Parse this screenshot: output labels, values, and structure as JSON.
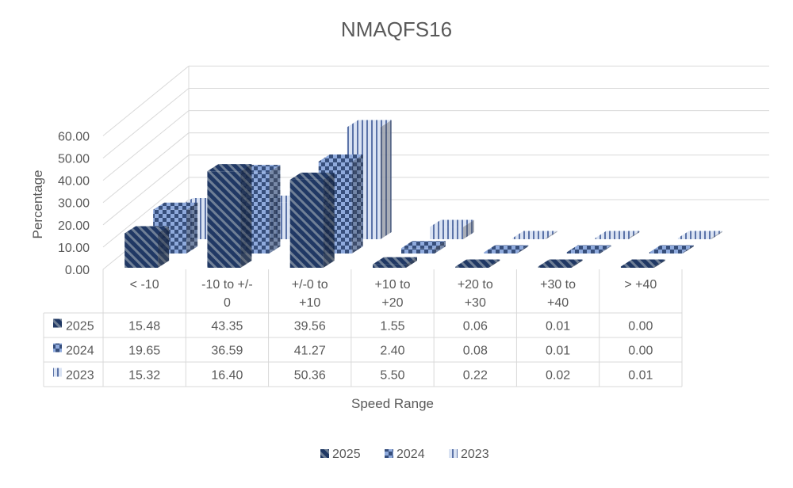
{
  "chart_data": {
    "type": "bar",
    "title": "NMAQFS16",
    "xlabel": "Speed Range",
    "ylabel": "Percentage",
    "categories": [
      [
        "< -10"
      ],
      [
        "-10 to +/-",
        "0"
      ],
      [
        "+/-0 to",
        "+10"
      ],
      [
        "+10 to",
        "+20"
      ],
      [
        "+20 to",
        "+30"
      ],
      [
        "+30 to",
        "+40"
      ],
      [
        "> +40"
      ]
    ],
    "series": [
      {
        "name": "2025",
        "values": [
          15.48,
          43.35,
          39.56,
          1.55,
          0.06,
          0.01,
          0.0
        ],
        "display": [
          "15.48",
          "43.35",
          "39.56",
          "1.55",
          "0.06",
          "0.01",
          "0.00"
        ]
      },
      {
        "name": "2024",
        "values": [
          19.65,
          36.59,
          41.27,
          2.4,
          0.08,
          0.01,
          0.0
        ],
        "display": [
          "19.65",
          "36.59",
          "41.27",
          "2.40",
          "0.08",
          "0.01",
          "0.00"
        ]
      },
      {
        "name": "2023",
        "values": [
          15.32,
          16.4,
          50.36,
          5.5,
          0.22,
          0.02,
          0.01
        ],
        "display": [
          "15.32",
          "16.40",
          "50.36",
          "5.50",
          "0.22",
          "0.02",
          "0.01"
        ]
      }
    ],
    "yticks": [
      "0.00",
      "10.00",
      "20.00",
      "30.00",
      "40.00",
      "50.00",
      "60.00"
    ],
    "ylim": [
      0,
      60
    ],
    "grid": true,
    "legend": "bottom",
    "data_table": true,
    "colors": {
      "2025": "#203864",
      "2024": "#8faadc",
      "2023": "#b4c7e7",
      "axis": "#d9d9d9",
      "text": "#595959"
    }
  }
}
